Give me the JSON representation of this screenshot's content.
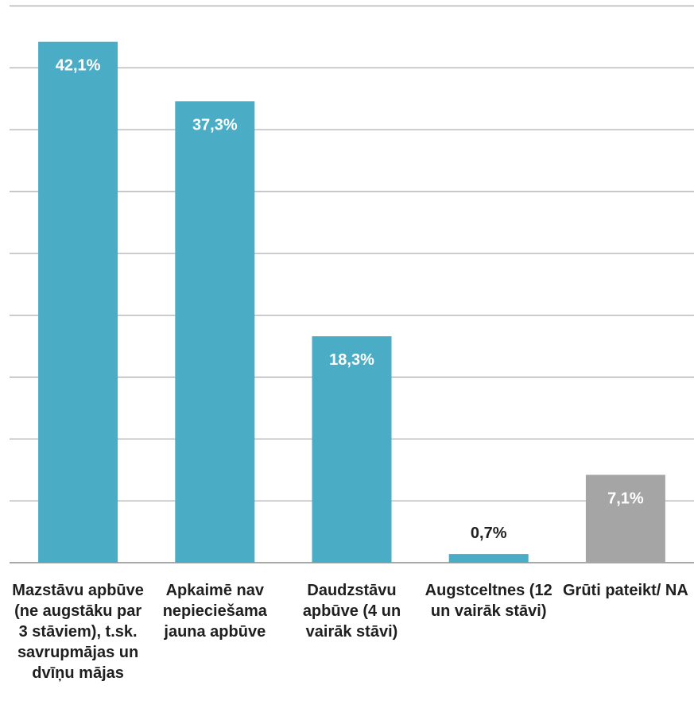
{
  "chart_data": {
    "type": "bar",
    "categories": [
      "Mazstāvu apbūve (ne augstāku par 3 stāviem), t.sk. savrupmājas un dvīņu mājas",
      "Apkaimē nav nepieciešama jauna apbūve",
      "Daudzstāvu apbūve (4 un vairāk stāvi)",
      "Augstceltnes (12 un vairāk stāvi)",
      "Grūti pateikt/ NA"
    ],
    "values": [
      42.1,
      37.3,
      18.3,
      0.7,
      7.1
    ],
    "value_labels": [
      "42,1%",
      "37,3%",
      "18,3%",
      "0,7%",
      "7,1%"
    ],
    "colors": [
      "#4bacc6",
      "#4bacc6",
      "#4bacc6",
      "#4bacc6",
      "#a5a5a5"
    ],
    "ylim": [
      0,
      45
    ],
    "grid": true,
    "gridline_step": 5
  }
}
